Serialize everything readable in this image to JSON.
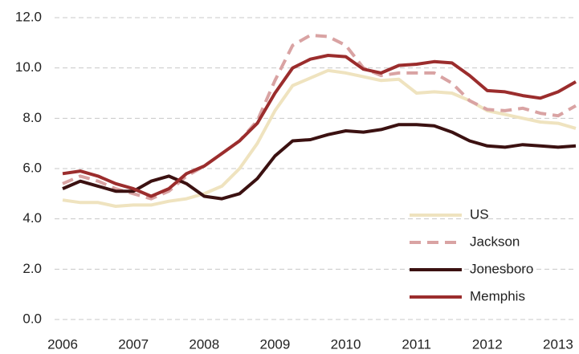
{
  "chart_data": {
    "type": "line",
    "categories": [
      "2006",
      null,
      null,
      null,
      "2007",
      null,
      null,
      null,
      "2008",
      null,
      null,
      null,
      "2009",
      null,
      null,
      null,
      "2010",
      null,
      null,
      null,
      "2011",
      null,
      null,
      null,
      "2012",
      null,
      null,
      null,
      "2013",
      null
    ],
    "series": [
      {
        "name": "US",
        "color": "#efe3bf",
        "style": "solid",
        "values": [
          4.75,
          4.65,
          4.65,
          4.5,
          4.55,
          4.55,
          4.7,
          4.8,
          5.0,
          5.3,
          6.0,
          7.0,
          8.3,
          9.3,
          9.6,
          9.9,
          9.8,
          9.65,
          9.5,
          9.55,
          9.0,
          9.05,
          9.0,
          8.7,
          8.3,
          8.15,
          8.0,
          7.85,
          7.8,
          7.6
        ]
      },
      {
        "name": "Jackson",
        "color": "#d9a3a3",
        "style": "dashed",
        "values": [
          5.4,
          5.7,
          5.5,
          5.2,
          5.0,
          4.8,
          5.1,
          5.7,
          6.1,
          6.6,
          7.1,
          7.9,
          9.5,
          10.9,
          11.3,
          11.25,
          10.9,
          10.0,
          9.7,
          9.8,
          9.8,
          9.8,
          9.4,
          8.7,
          8.35,
          8.3,
          8.4,
          8.2,
          8.1,
          8.5
        ]
      },
      {
        "name": "Jonesboro",
        "color": "#3b1111",
        "style": "solid",
        "values": [
          5.2,
          5.5,
          5.3,
          5.1,
          5.1,
          5.5,
          5.7,
          5.4,
          4.9,
          4.8,
          5.0,
          5.6,
          6.5,
          7.1,
          7.15,
          7.35,
          7.5,
          7.45,
          7.55,
          7.75,
          7.75,
          7.7,
          7.45,
          7.1,
          6.9,
          6.85,
          6.95,
          6.9,
          6.85,
          6.9
        ]
      },
      {
        "name": "Memphis",
        "color": "#9b2d2d",
        "style": "solid",
        "values": [
          5.8,
          5.9,
          5.7,
          5.4,
          5.2,
          4.9,
          5.2,
          5.8,
          6.1,
          6.6,
          7.1,
          7.8,
          9.0,
          10.0,
          10.35,
          10.5,
          10.45,
          9.95,
          9.8,
          10.1,
          10.15,
          10.25,
          10.2,
          9.7,
          9.1,
          9.05,
          8.9,
          8.8,
          9.05,
          9.45
        ]
      }
    ],
    "ylim": [
      0,
      12
    ],
    "yticks": [
      {
        "value": 0,
        "label": "0.0"
      },
      {
        "value": 2,
        "label": "2.0"
      },
      {
        "value": 4,
        "label": "4.0"
      },
      {
        "value": 6,
        "label": "6.0"
      },
      {
        "value": 8,
        "label": "8.0"
      },
      {
        "value": 10,
        "label": "10.0"
      },
      {
        "value": 12,
        "label": "12.0"
      }
    ],
    "grid": true,
    "legend": "lower right"
  }
}
